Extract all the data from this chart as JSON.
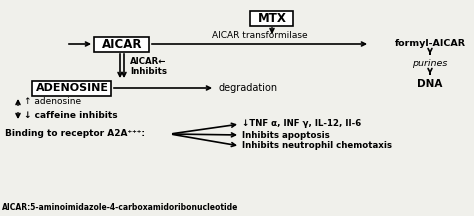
{
  "bg_color": "#f0f0eb",
  "box_color": "#ffffff",
  "box_edge": "#000000",
  "text_color": "#000000",
  "title": "MTX",
  "aicar_label": "AICAR",
  "adenosine_label": "ADENOSINE",
  "aicar_transformilase": "AICAR transformilase",
  "formyl_aicar": "formyl-AICAR",
  "purines": "purines",
  "dna": "DNA",
  "aicar_inhibits": "AICAR←\nInhibits",
  "degradation": "degradation",
  "adenosine_note": "↑ adenosine",
  "caffeine_note": "↓ caffeine inhibits",
  "binding": "Binding to receptor A2A⁺⁺⁺:",
  "tnf": "↓TNF α, INF γ, IL-12, II-6",
  "apoptosis": "Inhibits apoptosis",
  "neutrophil": "Inhibits neutrophil chemotaxis",
  "footnote": "AICAR:5-aminoimidazole-4-carboxamidoribonucleotide"
}
